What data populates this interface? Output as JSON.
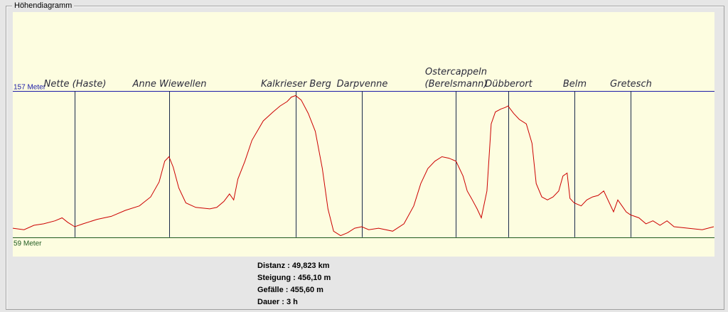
{
  "window": {
    "title": "Höhendiagramm"
  },
  "colors": {
    "plot_background": "#fdfde0",
    "profile_line": "#cc0000",
    "max_line": "#1a1aa8",
    "min_line": "#1f5a1f",
    "marker_line": "#1a2a4a",
    "page_background": "#e6e6e6"
  },
  "chart_data": {
    "type": "line",
    "title": "Höhendiagramm",
    "xlabel": "",
    "ylabel": "",
    "xlim": [
      0,
      49.823
    ],
    "ylim": [
      46,
      210
    ],
    "grid": false,
    "reference_lines": [
      {
        "label": "157 Meter",
        "value": 157,
        "color": "#1a1aa8"
      },
      {
        "label": "59 Meter",
        "value": 59,
        "color": "#1f5a1f"
      }
    ],
    "places": [
      {
        "name": "Nette (Haste)",
        "km": 4.4
      },
      {
        "name": "Anne Wiewellen",
        "km": 11.1
      },
      {
        "name": "Kalkrieser Berg",
        "km": 20.1
      },
      {
        "name": "Darpvenne",
        "km": 24.8
      },
      {
        "name": "Ostercappeln\n(Berelsmann)",
        "km": 31.5
      },
      {
        "name": "Dübberort",
        "km": 35.2
      },
      {
        "name": "Belm",
        "km": 39.9
      },
      {
        "name": "Gretesch",
        "km": 43.9
      }
    ],
    "series": [
      {
        "x": [
          0,
          0.8,
          1.5,
          2.2,
          3.0,
          3.5,
          3.9,
          4.4,
          5.0,
          6.0,
          7.0,
          8.0,
          9.0,
          9.8,
          10.4,
          10.8,
          11.1,
          11.4,
          11.8,
          12.3,
          13.0,
          14.0,
          14.5,
          15.0,
          15.4,
          15.7,
          16.0,
          16.5,
          17.0,
          17.8,
          18.5,
          19.0,
          19.5,
          19.8,
          20.1,
          20.5,
          21.0,
          21.5,
          22.0,
          22.4,
          22.8,
          23.3,
          23.8,
          24.3,
          24.8,
          25.3,
          26.0,
          27.0,
          27.8,
          28.5,
          29.0,
          29.5,
          30.0,
          30.5,
          31.0,
          31.5,
          32.0,
          32.3,
          32.6,
          33.0,
          33.3,
          33.7,
          34.0,
          34.3,
          34.7,
          35.0,
          35.2,
          35.6,
          36.0,
          36.5,
          36.9,
          37.2,
          37.6,
          38.0,
          38.4,
          38.8,
          39.1,
          39.4,
          39.6,
          39.9,
          40.4,
          40.8,
          41.2,
          41.6,
          42.0,
          42.4,
          42.7,
          43.0,
          43.3,
          43.6,
          43.9,
          44.5,
          45.0,
          45.5,
          46.0,
          46.5,
          47.0,
          48.0,
          49.0,
          49.823
        ],
        "y": [
          65,
          64,
          67,
          68,
          70,
          72,
          69,
          66,
          68,
          71,
          73,
          77,
          80,
          86,
          96,
          110,
          113,
          106,
          92,
          82,
          79,
          78,
          79,
          83,
          88,
          84,
          98,
          110,
          124,
          137,
          143,
          147,
          150,
          153,
          154,
          151,
          142,
          130,
          105,
          78,
          63,
          60,
          62,
          65,
          66,
          64,
          65,
          63,
          68,
          80,
          95,
          105,
          110,
          113,
          112,
          110,
          100,
          90,
          85,
          78,
          72,
          90,
          135,
          143,
          145,
          146,
          147,
          142,
          138,
          135,
          122,
          95,
          86,
          84,
          86,
          90,
          100,
          102,
          85,
          82,
          80,
          84,
          86,
          87,
          90,
          82,
          76,
          84,
          80,
          76,
          74,
          72,
          68,
          70,
          67,
          70,
          66,
          65,
          64,
          66
        ]
      }
    ]
  },
  "stats": [
    {
      "label": "Distanz",
      "value": "49,823 km"
    },
    {
      "label": "Steigung",
      "value": "456,10 m"
    },
    {
      "label": "Gefälle",
      "value": "455,60 m"
    },
    {
      "label": "Dauer",
      "value": "3 h"
    }
  ]
}
